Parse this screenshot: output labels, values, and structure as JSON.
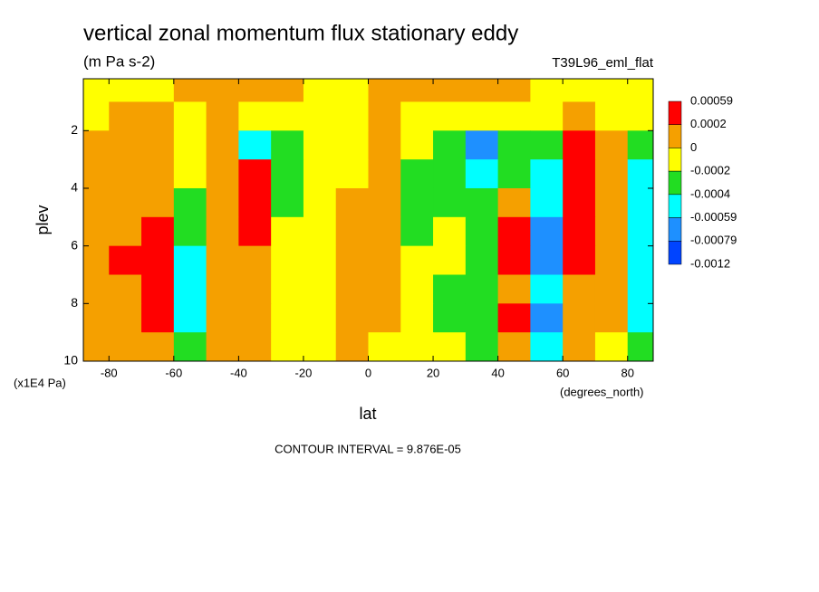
{
  "chart_data": {
    "type": "contour",
    "title": "vertical zonal momentum flux stationary eddy",
    "subtitle": "(m Pa s-2)",
    "dataset": "T39L96_eml_flat",
    "x_label": "lat",
    "x_units": "(degrees_north)",
    "y_label": "plev",
    "y_units": "(x1E4 Pa)",
    "footer": "CONTOUR INTERVAL = 9.876E-05",
    "xlim": [
      -87.9,
      87.9
    ],
    "xticks": [
      -80,
      -60,
      -40,
      -20,
      0,
      20,
      40,
      60,
      80
    ],
    "ylim": [
      10,
      0.2
    ],
    "yticks": [
      2,
      4,
      6,
      8,
      10
    ],
    "x": [
      -85,
      -75,
      -65,
      -55,
      -45,
      -35,
      -25,
      -15,
      -5,
      5,
      15,
      25,
      35,
      45,
      55,
      65,
      75,
      85
    ],
    "y": [
      0.5,
      1.5,
      2.5,
      3.5,
      4.5,
      5.5,
      6.5,
      7.5,
      8.5,
      9.5
    ],
    "z": [
      [
        -0.0001,
        -0.0001,
        -0.0001,
        0.0001,
        0.0001,
        0.0001,
        0.0001,
        -0.0001,
        -0.0001,
        0.0001,
        0.0001,
        0.0001,
        0.0001,
        0.0001,
        -0.0001,
        -0.0001,
        -0.0001,
        -0.0001
      ],
      [
        -0.0001,
        0.0001,
        0.0001,
        -0.0001,
        0.0001,
        -0.0001,
        -0.0001,
        -0.0001,
        -0.0001,
        0.0001,
        -0.0001,
        -0.0001,
        -0.0001,
        -0.0001,
        -0.0001,
        0.0001,
        -0.0001,
        -0.0001
      ],
      [
        0.0001,
        0.0001,
        0.0001,
        -0.0001,
        0.0001,
        -0.0005,
        -0.0003,
        -0.0001,
        -0.0001,
        0.0001,
        -0.0001,
        -0.0003,
        -0.0007,
        -0.0003,
        -0.0003,
        0.0004,
        0.0001,
        -0.0003
      ],
      [
        0.0001,
        0.0001,
        0.0001,
        -0.0001,
        0.0001,
        0.0004,
        -0.0003,
        -0.0001,
        -0.0001,
        0.0001,
        -0.0003,
        -0.0003,
        -0.0005,
        -0.0003,
        -0.0005,
        0.0004,
        0.0001,
        -0.0005
      ],
      [
        0.0001,
        0.0001,
        0.0001,
        -0.0003,
        0.0001,
        0.0004,
        -0.0003,
        -0.0001,
        0.0001,
        0.0001,
        -0.0003,
        -0.0003,
        -0.0003,
        0.0001,
        -0.0005,
        0.0004,
        0.0001,
        -0.0005
      ],
      [
        0.0001,
        0.0001,
        0.0004,
        -0.0003,
        0.0001,
        0.0004,
        -0.0001,
        -0.0001,
        0.0001,
        0.0001,
        -0.0003,
        -0.0001,
        -0.0003,
        0.0004,
        -0.0007,
        0.0004,
        0.0001,
        -0.0005
      ],
      [
        0.0001,
        0.0004,
        0.0004,
        -0.0005,
        0.0001,
        0.0001,
        -0.0001,
        -0.0001,
        0.0001,
        0.0001,
        -0.0001,
        -0.0001,
        -0.0003,
        0.0004,
        -0.0007,
        0.0004,
        0.0001,
        -0.0005
      ],
      [
        0.0001,
        0.0001,
        0.0004,
        -0.0005,
        0.0001,
        0.0001,
        -0.0001,
        -0.0001,
        0.0001,
        0.0001,
        -0.0001,
        -0.0003,
        -0.0003,
        0.0001,
        -0.0005,
        0.0001,
        0.0001,
        -0.0005
      ],
      [
        0.0001,
        0.0001,
        0.0004,
        -0.0005,
        0.0001,
        0.0001,
        -0.0001,
        -0.0001,
        0.0001,
        0.0001,
        -0.0001,
        -0.0003,
        -0.0003,
        0.0004,
        -0.0007,
        0.0001,
        0.0001,
        -0.0005
      ],
      [
        0.0001,
        0.0001,
        0.0001,
        -0.0003,
        0.0001,
        0.0001,
        -0.0001,
        -0.0001,
        0.0001,
        -0.0001,
        -0.0001,
        -0.0001,
        -0.0003,
        0.0001,
        -0.0005,
        0.0001,
        -0.0001,
        -0.0003
      ]
    ],
    "levels": [
      0.00059,
      0.0002,
      0,
      -0.0002,
      -0.0004,
      -0.00059,
      -0.00079,
      -0.0012
    ],
    "colors": [
      "#ff0000",
      "#f5a000",
      "#ffff00",
      "#22dd22",
      "#00ffff",
      "#1e90ff",
      "#0044ff"
    ]
  }
}
